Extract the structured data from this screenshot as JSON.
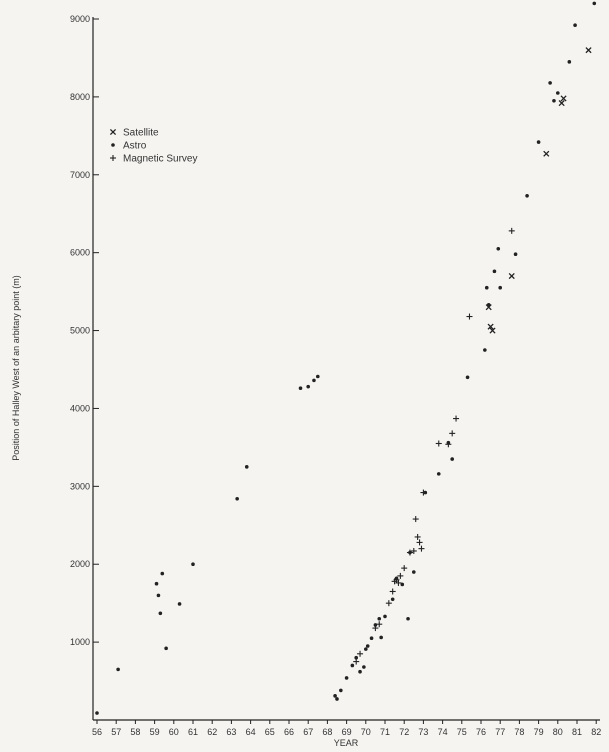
{
  "chart_data": {
    "type": "scatter",
    "title": "",
    "xlabel": "YEAR",
    "ylabel": "Position of Halley West of an arbitary point (m)",
    "xlim": [
      55.5,
      82
    ],
    "ylim": [
      0,
      9000
    ],
    "x_ticks": [
      56,
      57,
      58,
      59,
      60,
      61,
      62,
      63,
      64,
      65,
      66,
      67,
      68,
      69,
      70,
      71,
      72,
      73,
      74,
      75,
      76,
      77,
      78,
      79,
      80,
      81,
      82
    ],
    "y_ticks": [
      1000,
      2000,
      3000,
      4000,
      5000,
      6000,
      7000,
      8000,
      9000
    ],
    "grid": false,
    "legend_position": "top-left",
    "series": [
      {
        "name": "Satellite",
        "marker": "x",
        "x": [
          76.4,
          76.5,
          76.6,
          77.6,
          79.4,
          80.2,
          80.3,
          81.6
        ],
        "y": [
          5300,
          5050,
          5000,
          5700,
          7270,
          7920,
          7980,
          8600
        ]
      },
      {
        "name": "Astro",
        "marker": "dot",
        "x": [
          56.0,
          57.1,
          59.1,
          59.2,
          59.3,
          59.4,
          59.6,
          60.3,
          61.0,
          63.3,
          63.8,
          66.6,
          67.0,
          67.3,
          67.5,
          68.4,
          68.5,
          68.7,
          69.0,
          69.3,
          69.5,
          69.7,
          69.9,
          70.0,
          70.1,
          70.3,
          70.5,
          70.7,
          70.8,
          71.0,
          71.4,
          71.6,
          71.9,
          72.2,
          72.3,
          72.5,
          73.1,
          73.8,
          74.3,
          74.5,
          75.3,
          76.2,
          76.3,
          76.4,
          76.7,
          76.9,
          77.0,
          77.8,
          78.4,
          79.0,
          79.6,
          79.8,
          80.0,
          80.6,
          80.9,
          81.9
        ],
        "y": [
          90,
          650,
          1750,
          1600,
          1370,
          1880,
          920,
          1490,
          2000,
          2840,
          3250,
          4260,
          4280,
          4360,
          4410,
          310,
          270,
          380,
          540,
          700,
          800,
          620,
          680,
          910,
          950,
          1050,
          1220,
          1300,
          1060,
          1330,
          1550,
          1820,
          1740,
          1300,
          2150,
          1900,
          2920,
          3160,
          3560,
          3350,
          4400,
          4750,
          5550,
          5330,
          5760,
          6050,
          5550,
          5980,
          6730,
          7420,
          8180,
          7950,
          8050,
          8450,
          8920,
          9200
        ]
      },
      {
        "name": "Magnetic Survey",
        "marker": "plus",
        "x": [
          69.5,
          69.7,
          70.5,
          70.7,
          71.2,
          71.4,
          71.5,
          71.6,
          71.7,
          71.8,
          72.0,
          72.3,
          72.5,
          72.6,
          72.7,
          72.8,
          72.9,
          73.0,
          73.8,
          74.3,
          74.5,
          74.7,
          75.4,
          77.6
        ],
        "y": [
          750,
          850,
          1180,
          1230,
          1500,
          1650,
          1780,
          1800,
          1760,
          1850,
          1950,
          2150,
          2170,
          2580,
          2350,
          2280,
          2200,
          2920,
          3550,
          3540,
          3680,
          3870,
          5180,
          6280
        ]
      }
    ]
  }
}
